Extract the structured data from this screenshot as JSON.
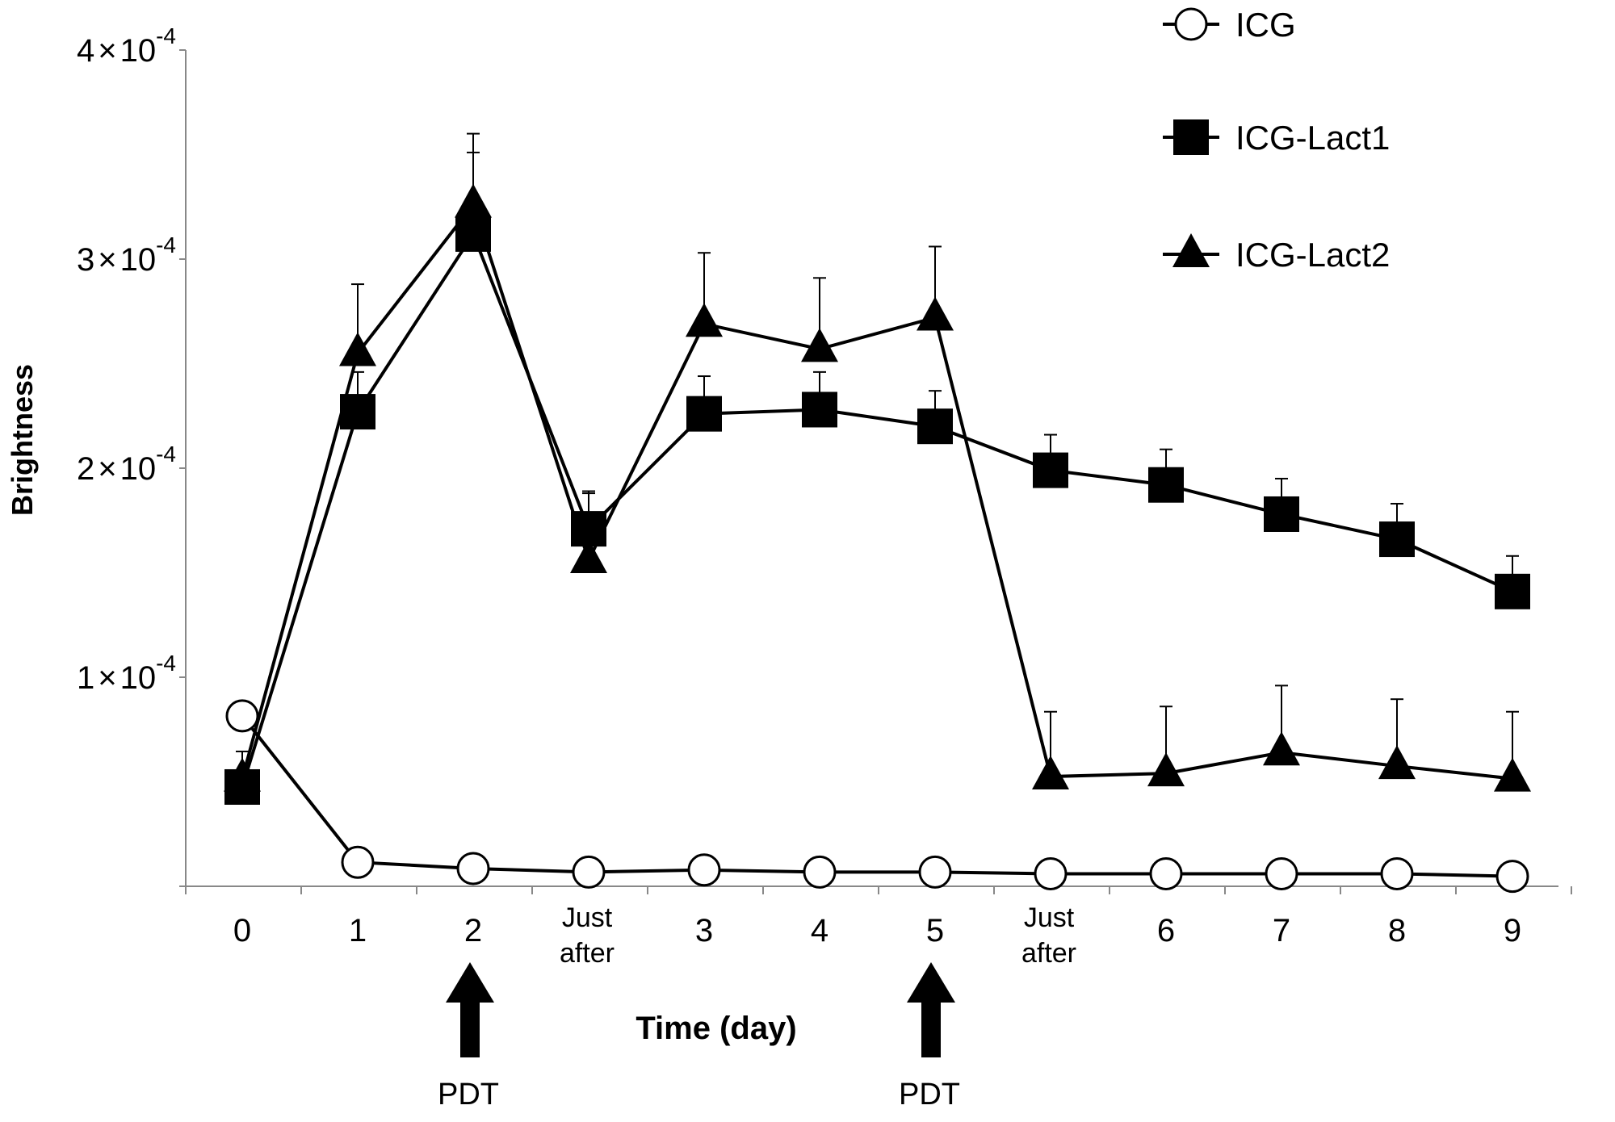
{
  "chart_data": {
    "type": "line",
    "title": "",
    "xlabel": "Time (day)",
    "ylabel": "Brightness",
    "categories": [
      "0",
      "1",
      "2",
      "Just\nafter",
      "3",
      "4",
      "5",
      "Just\nafter",
      "6",
      "7",
      "8",
      "9"
    ],
    "ylim": [
      0,
      0.0004
    ],
    "yticks": [
      {
        "value": 0.0001,
        "mantissa": "1",
        "times": "×",
        "base": "10",
        "exponent": "-4"
      },
      {
        "value": 0.0002,
        "mantissa": "2",
        "times": "×",
        "base": "10",
        "exponent": "-4"
      },
      {
        "value": 0.0003,
        "mantissa": "3",
        "times": "×",
        "base": "10",
        "exponent": "-4"
      },
      {
        "value": 0.0004,
        "mantissa": "4",
        "times": "×",
        "base": "10",
        "exponent": "-4"
      }
    ],
    "grid": false,
    "legend_position": "top-right",
    "series": [
      {
        "name": "ICG",
        "marker": "circle-open",
        "values": [
          8.15e-05,
          1.15e-05,
          8.5e-06,
          6.8e-06,
          7.8e-06,
          6.8e-06,
          6.8e-06,
          6e-06,
          6e-06,
          6e-06,
          6e-06,
          4.8e-06
        ],
        "errors": [
          0,
          0,
          0,
          0,
          0,
          0,
          0,
          0,
          0,
          0,
          0,
          0
        ]
      },
      {
        "name": "ICG-Lact1",
        "marker": "square-filled",
        "values": [
          4.75e-05,
          0.000227,
          0.000312,
          0.000171,
          0.000226,
          0.000228,
          0.00022,
          0.000199,
          0.000192,
          0.000178,
          0.000166,
          0.000141
        ],
        "errors": [
          0.0,
          1.9e-05,
          3.9e-05,
          1.7e-05,
          1.8e-05,
          1.8e-05,
          1.7e-05,
          1.7e-05,
          1.7e-05,
          1.7e-05,
          1.7e-05,
          1.7e-05
        ]
      },
      {
        "name": "ICG-Lact2",
        "marker": "triangle-filled",
        "values": [
          5.15e-05,
          0.000255,
          0.000326,
          0.000156,
          0.000269,
          0.000257,
          0.000272,
          5.25e-05,
          5.4e-05,
          6.4e-05,
          5.75e-05,
          5.15e-05
        ],
        "errors": [
          1.3e-05,
          3.3e-05,
          3.4e-05,
          3.3e-05,
          3.4e-05,
          3.4e-05,
          3.4e-05,
          3.1e-05,
          3.2e-05,
          3.2e-05,
          3.2e-05,
          3.2e-05
        ]
      }
    ],
    "annotations": [
      {
        "text": "PDT",
        "at_category": 2,
        "symbol": "up-arrow"
      },
      {
        "text": "PDT",
        "at_category": 6,
        "symbol": "up-arrow"
      }
    ]
  },
  "colors": {
    "line": "#000000",
    "background": "#ffffff"
  }
}
